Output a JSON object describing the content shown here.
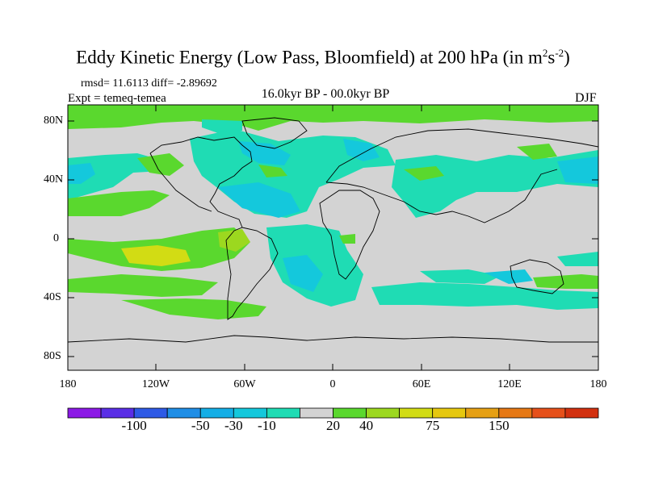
{
  "title": {
    "main": "Eddy Kinetic Energy (Low Pass, Bloomfield) at 200 hPa (in m",
    "exp2": "2",
    "mid": "s",
    "exp_neg2": "-2",
    "close": ")"
  },
  "stats": "rmsd= 11.6113 diff= -2.89692",
  "expt": "Expt = temeq-temea",
  "period": "16.0kyr BP - 00.0kyr BP",
  "season": "DJF",
  "map": {
    "lat_ticks": [
      "80N",
      "40N",
      "0",
      "40S",
      "80S"
    ],
    "lon_ticks": [
      "180",
      "120W",
      "60W",
      "0",
      "60E",
      "120E",
      "180"
    ],
    "background_color": "#d3d3d3"
  },
  "colorbar": {
    "labels": [
      "-100",
      "-50",
      "-30",
      "-10",
      "20",
      "40",
      "75",
      "150"
    ],
    "colors": [
      "#8c19e6",
      "#5a2ee6",
      "#2e5ae6",
      "#1f8ee6",
      "#14aee6",
      "#14c8dc",
      "#1fdcb4",
      "#d3d3d3",
      "#5ad82e",
      "#9cd81f",
      "#d2dc14",
      "#e6c80f",
      "#e6a014",
      "#e67814",
      "#e6501a",
      "#d2300f"
    ]
  },
  "field": {
    "palette": {
      "gray": "#d3d3d3",
      "teal": "#1fdcb4",
      "cyan": "#14c8dc",
      "green": "#5ad82e",
      "lime": "#9cd81f",
      "yellow": "#d2dc14"
    }
  }
}
